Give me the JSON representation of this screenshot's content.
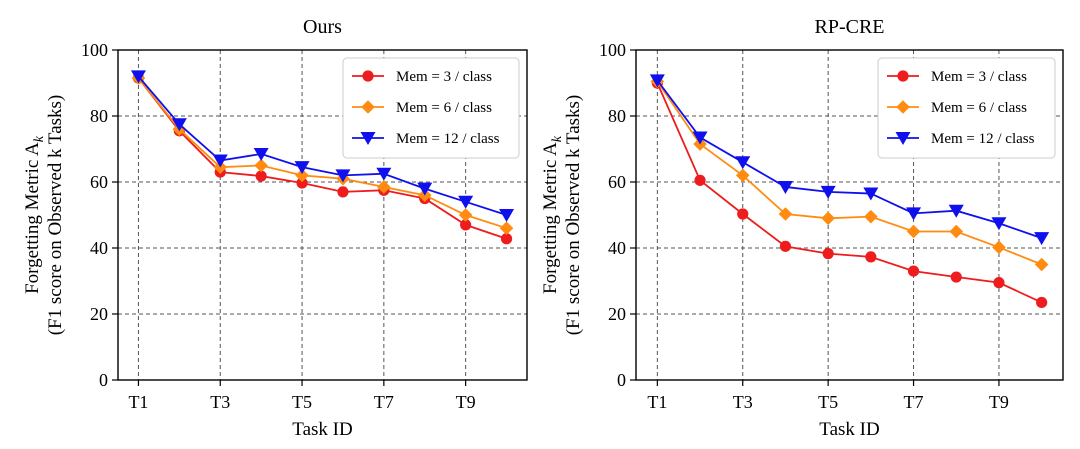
{
  "colors": {
    "mem3": "#ee1c1c",
    "mem6": "#ff8c10",
    "mem12": "#1010ee",
    "grid": "#555555"
  },
  "chart_data": [
    {
      "type": "line",
      "title": "Ours",
      "xlabel": "Task ID",
      "ylabel_line1": "Forgetting Metric A",
      "ylabel_sub": "k",
      "ylabel_line2": "(F1 score on Observed k Tasks)",
      "x": [
        1,
        2,
        3,
        4,
        5,
        6,
        7,
        8,
        9,
        10
      ],
      "xtick_values": [
        1,
        3,
        5,
        7,
        9
      ],
      "xtick_labels": [
        "T1",
        "T3",
        "T5",
        "T7",
        "T9"
      ],
      "ylim": [
        0,
        100
      ],
      "ytick_values": [
        0,
        20,
        40,
        60,
        80,
        100
      ],
      "ytick_labels": [
        "0",
        "20",
        "40",
        "60",
        "80",
        "100"
      ],
      "grid": true,
      "legend_position": "top-right",
      "series": [
        {
          "name": "Mem = 3 / class",
          "marker": "circle",
          "color_key": "mem3",
          "values": [
            91.5,
            75.5,
            63.0,
            61.8,
            59.7,
            57.0,
            57.5,
            55.0,
            47.0,
            42.8
          ]
        },
        {
          "name": "Mem = 6 / class",
          "marker": "diamond",
          "color_key": "mem6",
          "values": [
            91.5,
            76.0,
            64.5,
            65.0,
            62.0,
            61.0,
            58.5,
            56.0,
            50.0,
            46.0
          ]
        },
        {
          "name": "Mem = 12 / class",
          "marker": "triangle-down",
          "color_key": "mem12",
          "values": [
            92.0,
            77.5,
            66.5,
            68.5,
            64.5,
            62.0,
            62.5,
            58.0,
            54.0,
            50.0
          ]
        }
      ]
    },
    {
      "type": "line",
      "title": "RP-CRE",
      "xlabel": "Task ID",
      "ylabel_line1": "Forgetting Metric A",
      "ylabel_sub": "k",
      "ylabel_line2": "(F1 score on Observed k Tasks)",
      "x": [
        1,
        2,
        3,
        4,
        5,
        6,
        7,
        8,
        9,
        10
      ],
      "xtick_values": [
        1,
        3,
        5,
        7,
        9
      ],
      "xtick_labels": [
        "T1",
        "T3",
        "T5",
        "T7",
        "T9"
      ],
      "ylim": [
        0,
        100
      ],
      "ytick_values": [
        0,
        20,
        40,
        60,
        80,
        100
      ],
      "ytick_labels": [
        "0",
        "20",
        "40",
        "60",
        "80",
        "100"
      ],
      "grid": true,
      "legend_position": "top-right",
      "series": [
        {
          "name": "Mem = 3 / class",
          "marker": "circle",
          "color_key": "mem3",
          "values": [
            90.0,
            60.5,
            50.3,
            40.5,
            38.3,
            37.3,
            33.0,
            31.2,
            29.5,
            23.5
          ]
        },
        {
          "name": "Mem = 6 / class",
          "marker": "diamond",
          "color_key": "mem6",
          "values": [
            90.5,
            71.5,
            62.0,
            50.3,
            49.0,
            49.5,
            45.0,
            45.0,
            40.2,
            35.0
          ]
        },
        {
          "name": "Mem = 12 / class",
          "marker": "triangle-down",
          "color_key": "mem12",
          "values": [
            90.8,
            73.5,
            66.0,
            58.5,
            57.0,
            56.5,
            50.5,
            51.3,
            47.5,
            43.0
          ]
        }
      ]
    }
  ]
}
